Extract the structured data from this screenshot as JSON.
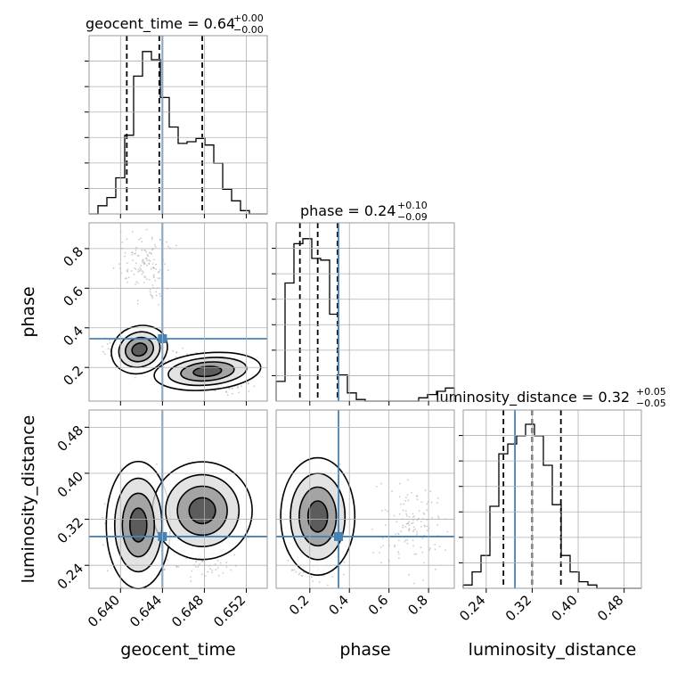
{
  "figure": {
    "title_geocent_time": "geocent_time = 0.64",
    "title_geocent_time_up": "+0.00",
    "title_geocent_time_down": "−0.00",
    "title_phase": "phase = 0.24",
    "title_phase_up": "+0.10",
    "title_phase_down": "−0.09",
    "title_luminosity_distance": "luminosity_distance = 0.32",
    "title_luminosity_distance_up": "+0.05",
    "title_luminosity_distance_down": "−0.05"
  },
  "colors": {
    "truth": "#4682b4",
    "hist": "#000000",
    "grid": "#b0b0b0",
    "frame": "#999999",
    "scatter": "#8c8c8c"
  },
  "chart_data": {
    "type": "corner",
    "parameters": [
      "geocent_time",
      "phase",
      "luminosity_distance"
    ],
    "axis_labels": {
      "geocent_time": "geocent_time",
      "phase": "phase",
      "luminosity_distance": "luminosity_distance"
    },
    "ranges": {
      "geocent_time": [
        0.637,
        0.654
      ],
      "phase": [
        0.03,
        0.93
      ],
      "luminosity_distance": [
        0.2,
        0.51
      ]
    },
    "ticks": {
      "geocent_time": [
        "0.640",
        "0.644",
        "0.648",
        "0.652"
      ],
      "phase": [
        "0.2",
        "0.4",
        "0.6",
        "0.8"
      ],
      "luminosity_distance": [
        "0.24",
        "0.32",
        "0.40",
        "0.48"
      ]
    },
    "truths": {
      "geocent_time": 0.644,
      "phase": 0.345,
      "luminosity_distance": 0.29
    },
    "quantiles": {
      "geocent_time": [
        0.6406,
        0.6437,
        0.6478
      ],
      "phase": [
        0.15,
        0.24,
        0.34
      ],
      "luminosity_distance": [
        0.27,
        0.32,
        0.37
      ]
    },
    "histograms": {
      "geocent_time": [
        0.0,
        0.05,
        0.1,
        0.22,
        0.48,
        0.84,
        0.99,
        0.94,
        0.71,
        0.53,
        0.43,
        0.44,
        0.46,
        0.42,
        0.31,
        0.15,
        0.08,
        0.02,
        0.0,
        0.0
      ],
      "phase": [
        0.12,
        0.72,
        0.96,
        0.99,
        0.87,
        0.86,
        0.53,
        0.16,
        0.05,
        0.01,
        0.0,
        0.0,
        0.0,
        0.0,
        0.0,
        0.0,
        0.02,
        0.04,
        0.06,
        0.08
      ],
      "luminosity_distance": [
        0.02,
        0.1,
        0.2,
        0.5,
        0.82,
        0.88,
        0.93,
        1.0,
        0.93,
        0.75,
        0.51,
        0.2,
        0.1,
        0.04,
        0.02,
        0.0,
        0.0,
        0.0,
        0.0,
        0.0
      ]
    }
  }
}
